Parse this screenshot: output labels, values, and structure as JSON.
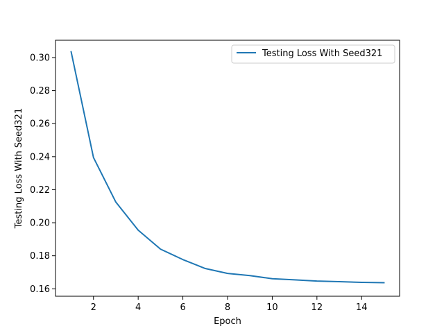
{
  "chart_data": {
    "type": "line",
    "title": "",
    "xlabel": "Epoch",
    "ylabel": "Testing Loss With Seed321",
    "xlim": [
      0.3,
      15.7
    ],
    "ylim": [
      0.1555,
      0.3105
    ],
    "xticks": [
      2,
      4,
      6,
      8,
      10,
      12,
      14
    ],
    "yticks": [
      0.16,
      0.18,
      0.2,
      0.22,
      0.24,
      0.26,
      0.28,
      0.3
    ],
    "ytick_labels": [
      "0.16",
      "0.18",
      "0.20",
      "0.22",
      "0.24",
      "0.26",
      "0.28",
      "0.30"
    ],
    "grid": false,
    "legend_position": "top-right",
    "series": [
      {
        "name": "Testing Loss With Seed321",
        "color": "#1f77b4",
        "x": [
          1,
          2,
          3,
          4,
          5,
          6,
          7,
          8,
          9,
          10,
          11,
          12,
          13,
          14,
          15
        ],
        "y": [
          0.3035,
          0.2395,
          0.2125,
          0.1955,
          0.184,
          0.1777,
          0.1723,
          0.1693,
          0.168,
          0.1661,
          0.1654,
          0.1647,
          0.1643,
          0.1639,
          0.1637
        ]
      }
    ]
  }
}
